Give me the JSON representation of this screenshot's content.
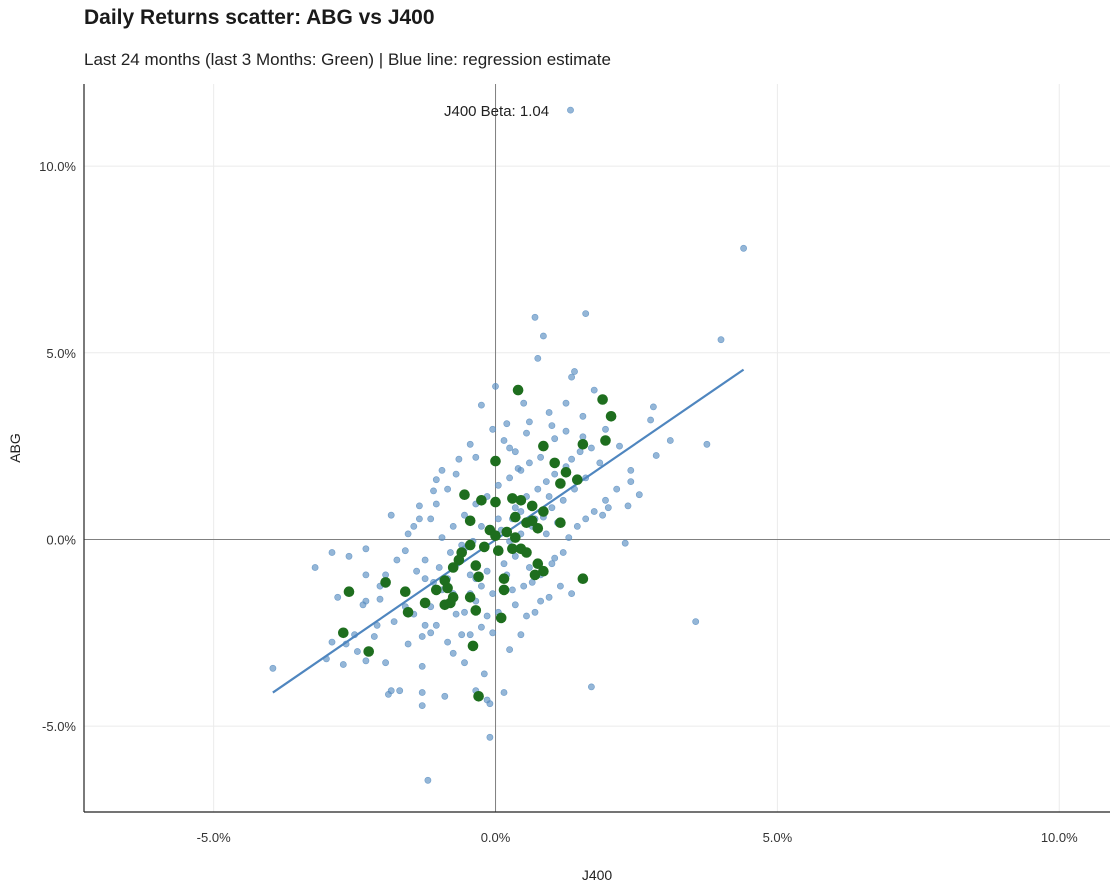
{
  "chart_data": {
    "type": "scatter",
    "title": "Daily Returns scatter: ABG vs J400",
    "subtitle": "Last 24 months (last 3 Months: Green) | Blue line: regression estimate",
    "xlabel": "J400",
    "ylabel": "ABG",
    "xlim": [
      -7.3,
      10.9
    ],
    "ylim": [
      -7.3,
      12.2
    ],
    "x_ticks": [
      -5,
      0,
      5,
      10
    ],
    "y_ticks": [
      -5,
      0,
      5,
      10
    ],
    "x_tick_labels": [
      "-5.0%",
      "0.0%",
      "5.0%",
      "10.0%"
    ],
    "y_tick_labels": [
      "-5.0%",
      "0.0%",
      "5.0%",
      "10.0%"
    ],
    "grid": true,
    "annotation": "J400 Beta: 1.04",
    "colors": {
      "older": "#5a8fc2",
      "recent": "#1e6e1e",
      "regression": "#4f86bf"
    },
    "regression": {
      "x": [
        -3.95,
        4.4
      ],
      "y": [
        -4.1,
        4.55
      ]
    },
    "series": [
      {
        "name": "Last 24 months",
        "color": "#5a8fc2",
        "points": [
          [
            1.33,
            11.5
          ],
          [
            4.4,
            7.8
          ],
          [
            4.0,
            5.35
          ],
          [
            1.6,
            6.05
          ],
          [
            0.7,
            5.95
          ],
          [
            0.85,
            5.45
          ],
          [
            0.75,
            4.85
          ],
          [
            1.4,
            4.5
          ],
          [
            1.35,
            4.35
          ],
          [
            1.75,
            4.0
          ],
          [
            0.0,
            4.1
          ],
          [
            -0.25,
            3.6
          ],
          [
            0.5,
            3.65
          ],
          [
            1.25,
            3.65
          ],
          [
            0.95,
            3.4
          ],
          [
            1.55,
            3.3
          ],
          [
            2.8,
            3.55
          ],
          [
            2.75,
            3.2
          ],
          [
            3.1,
            2.65
          ],
          [
            3.75,
            2.55
          ],
          [
            2.85,
            2.25
          ],
          [
            2.4,
            1.85
          ],
          [
            2.4,
            1.55
          ],
          [
            2.55,
            1.2
          ],
          [
            2.35,
            0.9
          ],
          [
            2.0,
            0.85
          ],
          [
            1.9,
            0.65
          ],
          [
            2.3,
            -0.1
          ],
          [
            3.55,
            -2.2
          ],
          [
            1.7,
            -3.95
          ],
          [
            1.05,
            -0.5
          ],
          [
            0.4,
            1.9
          ],
          [
            0.8,
            2.2
          ],
          [
            1.05,
            2.7
          ],
          [
            0.55,
            2.85
          ],
          [
            0.25,
            2.45
          ],
          [
            -0.35,
            2.2
          ],
          [
            -0.7,
            1.75
          ],
          [
            -0.95,
            1.85
          ],
          [
            -1.05,
            1.6
          ],
          [
            -1.1,
            1.3
          ],
          [
            -1.05,
            0.95
          ],
          [
            -1.35,
            0.9
          ],
          [
            -1.35,
            0.55
          ],
          [
            -1.85,
            0.65
          ],
          [
            -1.45,
            0.35
          ],
          [
            -1.6,
            -0.3
          ],
          [
            -1.25,
            -0.55
          ],
          [
            -1.95,
            -0.95
          ],
          [
            -2.3,
            -0.95
          ],
          [
            -2.6,
            -0.45
          ],
          [
            -2.3,
            -0.25
          ],
          [
            -2.9,
            -0.35
          ],
          [
            -3.2,
            -0.75
          ],
          [
            -2.8,
            -1.55
          ],
          [
            -2.3,
            -1.65
          ],
          [
            -2.35,
            -1.75
          ],
          [
            -2.05,
            -1.6
          ],
          [
            -1.6,
            -1.35
          ],
          [
            -1.6,
            -1.8
          ],
          [
            -1.45,
            -2.0
          ],
          [
            -1.15,
            -1.8
          ],
          [
            -1.25,
            -2.3
          ],
          [
            -1.15,
            -2.5
          ],
          [
            -1.05,
            -2.3
          ],
          [
            -1.3,
            -2.6
          ],
          [
            -1.55,
            -2.8
          ],
          [
            -1.8,
            -2.2
          ],
          [
            -2.1,
            -2.3
          ],
          [
            -2.15,
            -2.6
          ],
          [
            -2.5,
            -2.55
          ],
          [
            -2.65,
            -2.8
          ],
          [
            -2.9,
            -2.75
          ],
          [
            -3.0,
            -3.2
          ],
          [
            -2.7,
            -3.35
          ],
          [
            -2.45,
            -3.0
          ],
          [
            -2.3,
            -3.25
          ],
          [
            -3.95,
            -3.45
          ],
          [
            -1.95,
            -3.3
          ],
          [
            -1.85,
            -4.05
          ],
          [
            -1.9,
            -4.15
          ],
          [
            -1.7,
            -4.05
          ],
          [
            -1.3,
            -3.4
          ],
          [
            -1.3,
            -4.1
          ],
          [
            -1.3,
            -4.45
          ],
          [
            -0.9,
            -4.2
          ],
          [
            -0.35,
            -4.05
          ],
          [
            -0.15,
            -4.3
          ],
          [
            -0.1,
            -4.4
          ],
          [
            0.15,
            -4.1
          ],
          [
            -0.2,
            -3.6
          ],
          [
            -0.55,
            -3.3
          ],
          [
            -0.75,
            -3.05
          ],
          [
            -0.85,
            -2.75
          ],
          [
            -0.6,
            -2.55
          ],
          [
            -0.45,
            -2.55
          ],
          [
            -0.25,
            -2.35
          ],
          [
            -0.05,
            -2.5
          ],
          [
            -0.1,
            -5.3
          ],
          [
            -1.2,
            -6.45
          ],
          [
            0.25,
            -2.95
          ],
          [
            0.45,
            -2.55
          ],
          [
            0.55,
            -2.05
          ],
          [
            0.8,
            -1.65
          ],
          [
            0.95,
            -1.55
          ],
          [
            0.5,
            -1.25
          ],
          [
            0.2,
            -0.95
          ],
          [
            -0.15,
            -0.85
          ],
          [
            -0.05,
            -1.45
          ],
          [
            -0.35,
            -1.65
          ],
          [
            -0.55,
            -1.95
          ],
          [
            -0.7,
            -2.0
          ],
          [
            -0.75,
            -1.45
          ],
          [
            -0.85,
            -1.05
          ],
          [
            -1.0,
            -0.75
          ],
          [
            -0.65,
            -0.55
          ],
          [
            -0.55,
            -0.25
          ],
          [
            -0.2,
            -0.15
          ],
          [
            0.1,
            0.25
          ],
          [
            0.3,
            0.55
          ],
          [
            0.45,
            0.75
          ],
          [
            0.55,
            1.15
          ],
          [
            0.75,
            1.35
          ],
          [
            0.9,
            1.55
          ],
          [
            1.05,
            1.75
          ],
          [
            1.25,
            1.95
          ],
          [
            1.35,
            2.15
          ],
          [
            1.5,
            2.35
          ],
          [
            1.7,
            2.45
          ],
          [
            1.85,
            2.05
          ],
          [
            1.6,
            1.65
          ],
          [
            1.4,
            1.35
          ],
          [
            1.2,
            1.05
          ],
          [
            1.0,
            0.85
          ],
          [
            0.85,
            0.6
          ],
          [
            0.65,
            0.35
          ],
          [
            0.45,
            0.15
          ],
          [
            0.25,
            -0.05
          ],
          [
            0.35,
            -0.45
          ],
          [
            0.6,
            -0.75
          ],
          [
            0.8,
            -0.95
          ],
          [
            1.0,
            -0.65
          ],
          [
            1.2,
            -0.35
          ],
          [
            1.3,
            0.05
          ],
          [
            1.45,
            0.35
          ],
          [
            1.6,
            0.55
          ],
          [
            1.75,
            0.75
          ],
          [
            1.95,
            1.05
          ],
          [
            2.15,
            1.35
          ],
          [
            1.15,
            -1.25
          ],
          [
            1.35,
            -1.45
          ],
          [
            0.7,
            -1.95
          ],
          [
            0.35,
            -1.75
          ],
          [
            0.05,
            -1.95
          ],
          [
            -0.25,
            -1.25
          ],
          [
            -0.45,
            -0.95
          ],
          [
            -0.8,
            -0.35
          ],
          [
            -0.95,
            0.05
          ],
          [
            -0.75,
            0.35
          ],
          [
            -0.55,
            0.65
          ],
          [
            -0.35,
            0.95
          ],
          [
            -0.15,
            1.15
          ],
          [
            0.05,
            1.45
          ],
          [
            0.25,
            1.65
          ],
          [
            0.45,
            1.85
          ],
          [
            0.6,
            2.05
          ],
          [
            0.35,
            2.35
          ],
          [
            0.15,
            2.65
          ],
          [
            -0.05,
            2.95
          ],
          [
            -0.45,
            2.55
          ],
          [
            -0.65,
            2.15
          ],
          [
            -0.85,
            1.35
          ],
          [
            -1.15,
            0.55
          ],
          [
            -1.55,
            0.15
          ],
          [
            -1.75,
            -0.55
          ],
          [
            -1.25,
            -1.05
          ],
          [
            -0.95,
            -1.35
          ],
          [
            -0.35,
            -1.05
          ],
          [
            0.15,
            -0.65
          ],
          [
            0.55,
            -0.35
          ],
          [
            0.9,
            0.15
          ],
          [
            1.1,
            0.45
          ],
          [
            0.2,
            3.1
          ],
          [
            0.6,
            3.15
          ],
          [
            1.0,
            3.05
          ],
          [
            1.25,
            2.9
          ],
          [
            1.55,
            2.75
          ],
          [
            1.95,
            2.95
          ],
          [
            2.2,
            2.5
          ],
          [
            0.35,
            0.85
          ],
          [
            0.05,
            0.55
          ],
          [
            -0.25,
            0.35
          ],
          [
            -0.4,
            -0.05
          ],
          [
            -0.6,
            -0.15
          ],
          [
            0.7,
            0.55
          ],
          [
            0.95,
            1.15
          ],
          [
            -1.4,
            -0.85
          ],
          [
            -1.1,
            -1.15
          ],
          [
            -2.05,
            -1.25
          ],
          [
            -0.45,
            -1.45
          ],
          [
            -0.15,
            -2.05
          ],
          [
            0.3,
            -1.35
          ],
          [
            0.65,
            -1.15
          ]
        ]
      },
      {
        "name": "Last 3 months",
        "color": "#1e6e1e",
        "points": [
          [
            0.4,
            4.0
          ],
          [
            1.9,
            3.75
          ],
          [
            2.05,
            3.3
          ],
          [
            1.95,
            2.65
          ],
          [
            1.55,
            2.55
          ],
          [
            0.85,
            2.5
          ],
          [
            1.05,
            2.05
          ],
          [
            1.25,
            1.8
          ],
          [
            1.45,
            1.6
          ],
          [
            1.15,
            1.5
          ],
          [
            0.0,
            2.1
          ],
          [
            -0.55,
            1.2
          ],
          [
            -0.25,
            1.05
          ],
          [
            0.0,
            1.0
          ],
          [
            0.3,
            1.1
          ],
          [
            0.45,
            1.05
          ],
          [
            0.65,
            0.9
          ],
          [
            0.85,
            0.75
          ],
          [
            0.65,
            0.5
          ],
          [
            0.55,
            0.45
          ],
          [
            0.35,
            0.6
          ],
          [
            0.75,
            0.3
          ],
          [
            1.15,
            0.45
          ],
          [
            -0.45,
            0.5
          ],
          [
            -0.1,
            0.25
          ],
          [
            0.0,
            0.1
          ],
          [
            0.2,
            0.2
          ],
          [
            0.35,
            0.05
          ],
          [
            0.05,
            -0.3
          ],
          [
            -0.2,
            -0.2
          ],
          [
            0.3,
            -0.25
          ],
          [
            0.45,
            -0.25
          ],
          [
            0.55,
            -0.35
          ],
          [
            -0.45,
            -0.15
          ],
          [
            -0.6,
            -0.35
          ],
          [
            -0.65,
            -0.55
          ],
          [
            -0.75,
            -0.75
          ],
          [
            -0.35,
            -0.7
          ],
          [
            0.75,
            -0.65
          ],
          [
            0.85,
            -0.85
          ],
          [
            0.7,
            -0.95
          ],
          [
            1.55,
            -1.05
          ],
          [
            -0.3,
            -1.0
          ],
          [
            -0.9,
            -1.1
          ],
          [
            -0.85,
            -1.3
          ],
          [
            -1.05,
            -1.35
          ],
          [
            -0.75,
            -1.55
          ],
          [
            -0.45,
            -1.55
          ],
          [
            -1.25,
            -1.7
          ],
          [
            -0.9,
            -1.75
          ],
          [
            -0.8,
            -1.7
          ],
          [
            -1.55,
            -1.95
          ],
          [
            -1.95,
            -1.15
          ],
          [
            -1.6,
            -1.4
          ],
          [
            0.15,
            -1.05
          ],
          [
            0.15,
            -1.35
          ],
          [
            0.1,
            -2.1
          ],
          [
            -0.35,
            -1.9
          ],
          [
            -2.6,
            -1.4
          ],
          [
            -2.7,
            -2.5
          ],
          [
            -2.25,
            -3.0
          ],
          [
            -0.4,
            -2.85
          ],
          [
            -0.3,
            -4.2
          ]
        ]
      }
    ]
  }
}
